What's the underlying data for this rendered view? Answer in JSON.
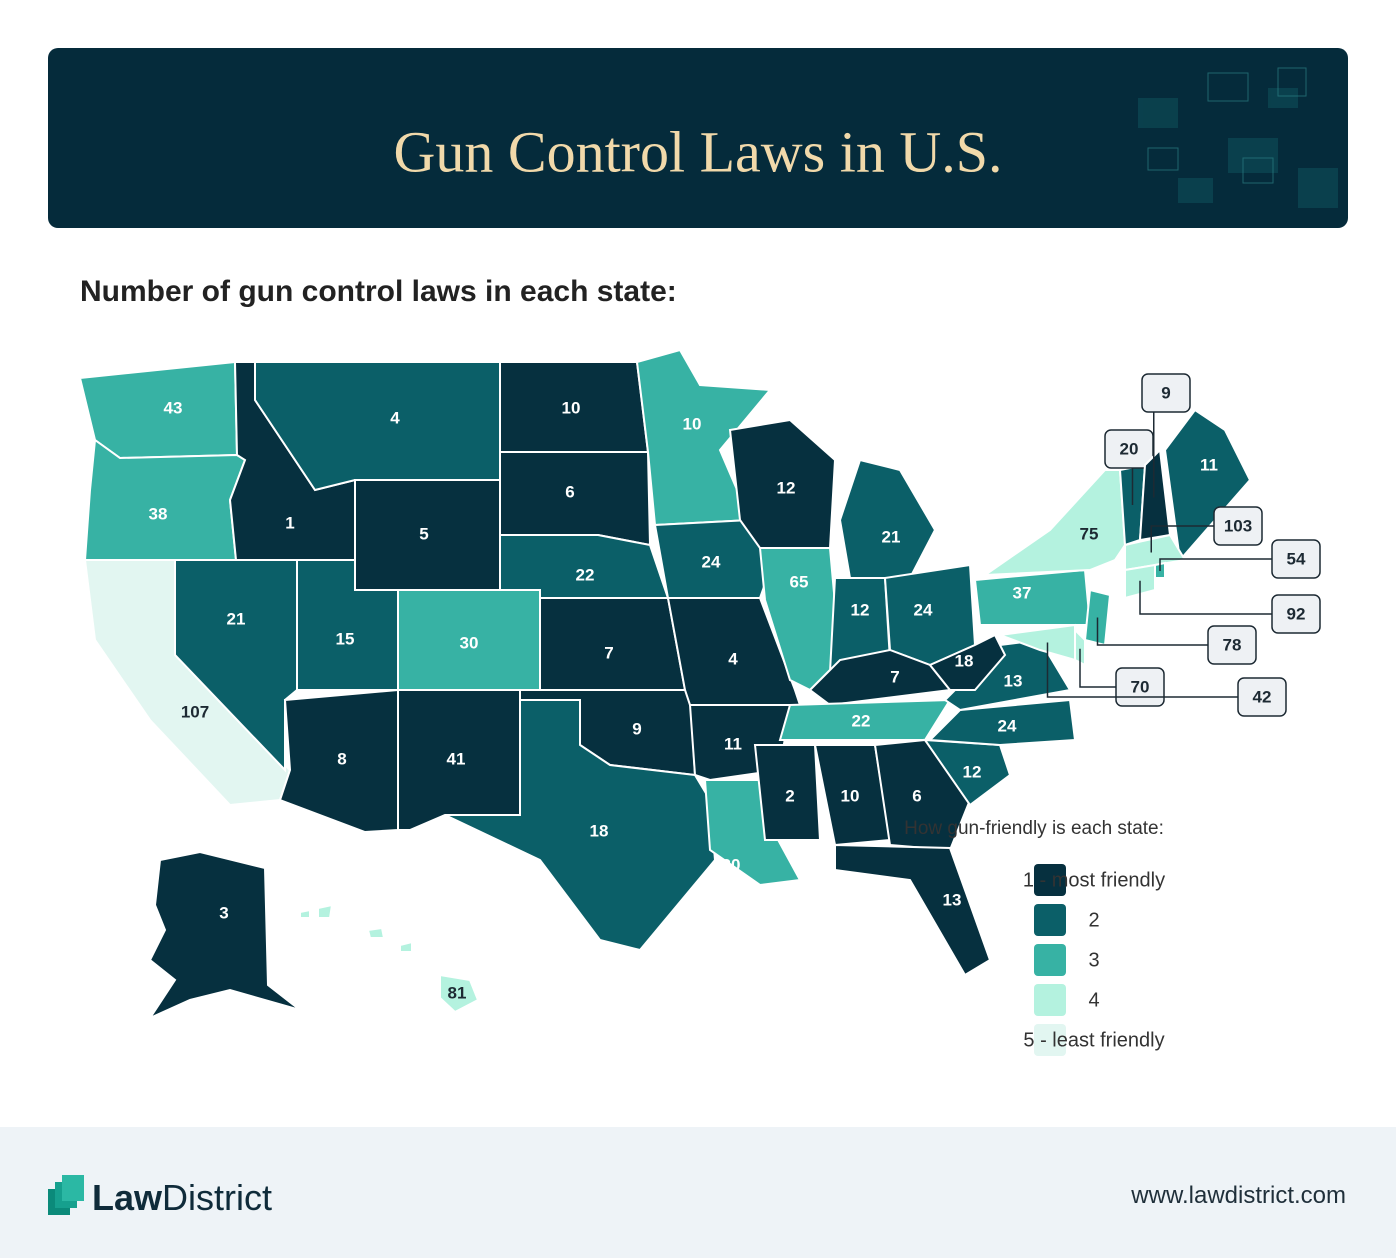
{
  "header": {
    "title": "Gun Control Laws in U.S."
  },
  "subtitle": "Number of gun control laws in each state:",
  "map": {
    "states": [
      {
        "value": 43,
        "level": 3
      },
      {
        "value": 38,
        "level": 3
      },
      {
        "value": 107,
        "level": 5
      },
      {
        "value": 1,
        "level": 1
      },
      {
        "value": 21,
        "level": 2
      },
      {
        "value": 4,
        "level": 2
      },
      {
        "value": 5,
        "level": 1
      },
      {
        "value": 15,
        "level": 2
      },
      {
        "value": 8,
        "level": 1
      },
      {
        "value": 30,
        "level": 3
      },
      {
        "value": 41,
        "level": 1
      },
      {
        "value": 10,
        "level": 1
      },
      {
        "value": 6,
        "level": 1
      },
      {
        "value": 22,
        "level": 2
      },
      {
        "value": 7,
        "level": 1
      },
      {
        "value": 9,
        "level": 1
      },
      {
        "value": 18,
        "level": 2
      },
      {
        "value": 10,
        "level": 3
      },
      {
        "value": 24,
        "level": 2
      },
      {
        "value": 4,
        "level": 1
      },
      {
        "value": 11,
        "level": 1
      },
      {
        "value": 20,
        "level": 3
      },
      {
        "value": 12,
        "level": 1
      },
      {
        "value": 65,
        "level": 3
      },
      {
        "value": 21,
        "level": 2
      },
      {
        "value": 12,
        "level": 2
      },
      {
        "value": 24,
        "level": 2
      },
      {
        "value": 7,
        "level": 1
      },
      {
        "value": 22,
        "level": 3
      },
      {
        "value": 2,
        "level": 1
      },
      {
        "value": 10,
        "level": 1
      },
      {
        "value": 6,
        "level": 1
      },
      {
        "value": 13,
        "level": 1
      },
      {
        "value": 12,
        "level": 2
      },
      {
        "value": 24,
        "level": 2
      },
      {
        "value": 13,
        "level": 2
      },
      {
        "value": 18,
        "level": 1
      },
      {
        "value": 37,
        "level": 3
      },
      {
        "value": 75,
        "level": 4
      },
      {
        "value": 20,
        "level": 2
      },
      {
        "value": 9,
        "level": 1
      },
      {
        "value": 11,
        "level": 2
      },
      {
        "value": 103,
        "level": 4
      },
      {
        "value": 54,
        "level": 3
      },
      {
        "value": 92,
        "level": 4
      },
      {
        "value": 78,
        "level": 3
      },
      {
        "value": 70,
        "level": 4
      },
      {
        "value": 42,
        "level": 4
      },
      {
        "value": 3,
        "level": 1
      },
      {
        "value": 81,
        "level": 4
      }
    ]
  },
  "legend": {
    "title": "How gun-friendly is each state:",
    "items": [
      {
        "label": "1 - most friendly",
        "color": "#06303f"
      },
      {
        "label": "2",
        "color": "#0b5f68"
      },
      {
        "label": "3",
        "color": "#37b2a4"
      },
      {
        "label": "4",
        "color": "#b4f2df"
      },
      {
        "label": "5 - least friendly",
        "color": "#e2f6f1"
      }
    ]
  },
  "footer": {
    "brand_bold": "Law",
    "brand": "District",
    "url": "www.lawdistrict.com"
  }
}
